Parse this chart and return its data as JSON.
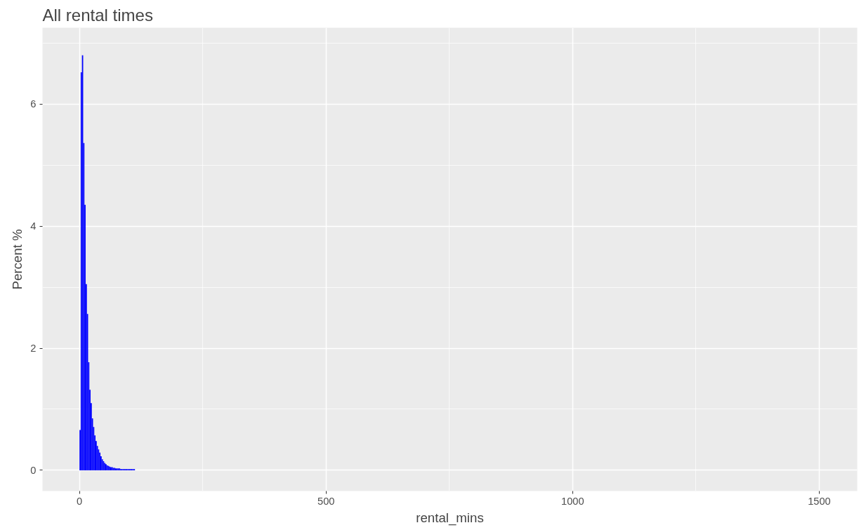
{
  "chart_data": {
    "type": "histogram",
    "title": "All rental times",
    "xlabel": "rental_mins",
    "ylabel": "Percent %",
    "bins": [
      0,
      2.5,
      5,
      7.5,
      10,
      12.5,
      15,
      17.5,
      20,
      22.5,
      25,
      27.5,
      30,
      32.5,
      35,
      37.5,
      40,
      42.5,
      45,
      47.5,
      50,
      52.5,
      55,
      57.5,
      60,
      62.5,
      65,
      67.5,
      70,
      72.5,
      75,
      77.5,
      80,
      82.5,
      85,
      87.5,
      90,
      92.5,
      95,
      97.5,
      100,
      102.5,
      105,
      107.5,
      110,
      112.5
    ],
    "values": [
      0.66,
      6.52,
      6.8,
      5.36,
      4.35,
      3.05,
      2.56,
      1.77,
      1.32,
      1.1,
      0.85,
      0.71,
      0.57,
      0.48,
      0.4,
      0.34,
      0.29,
      0.23,
      0.18,
      0.15,
      0.12,
      0.1,
      0.08,
      0.07,
      0.06,
      0.05,
      0.05,
      0.04,
      0.04,
      0.03,
      0.03,
      0.03,
      0.03,
      0.02,
      0.02,
      0.02,
      0.02,
      0.02,
      0.02,
      0.02,
      0.02,
      0.02,
      0.02,
      0.02,
      0.02
    ],
    "color": "#0000ff",
    "xlim": [
      -75,
      1577
    ],
    "ylim": [
      -0.34,
      7.25
    ],
    "xticks": [
      0,
      500,
      1000,
      1500
    ],
    "yticks": [
      0,
      2,
      4,
      6
    ],
    "grid": true
  }
}
